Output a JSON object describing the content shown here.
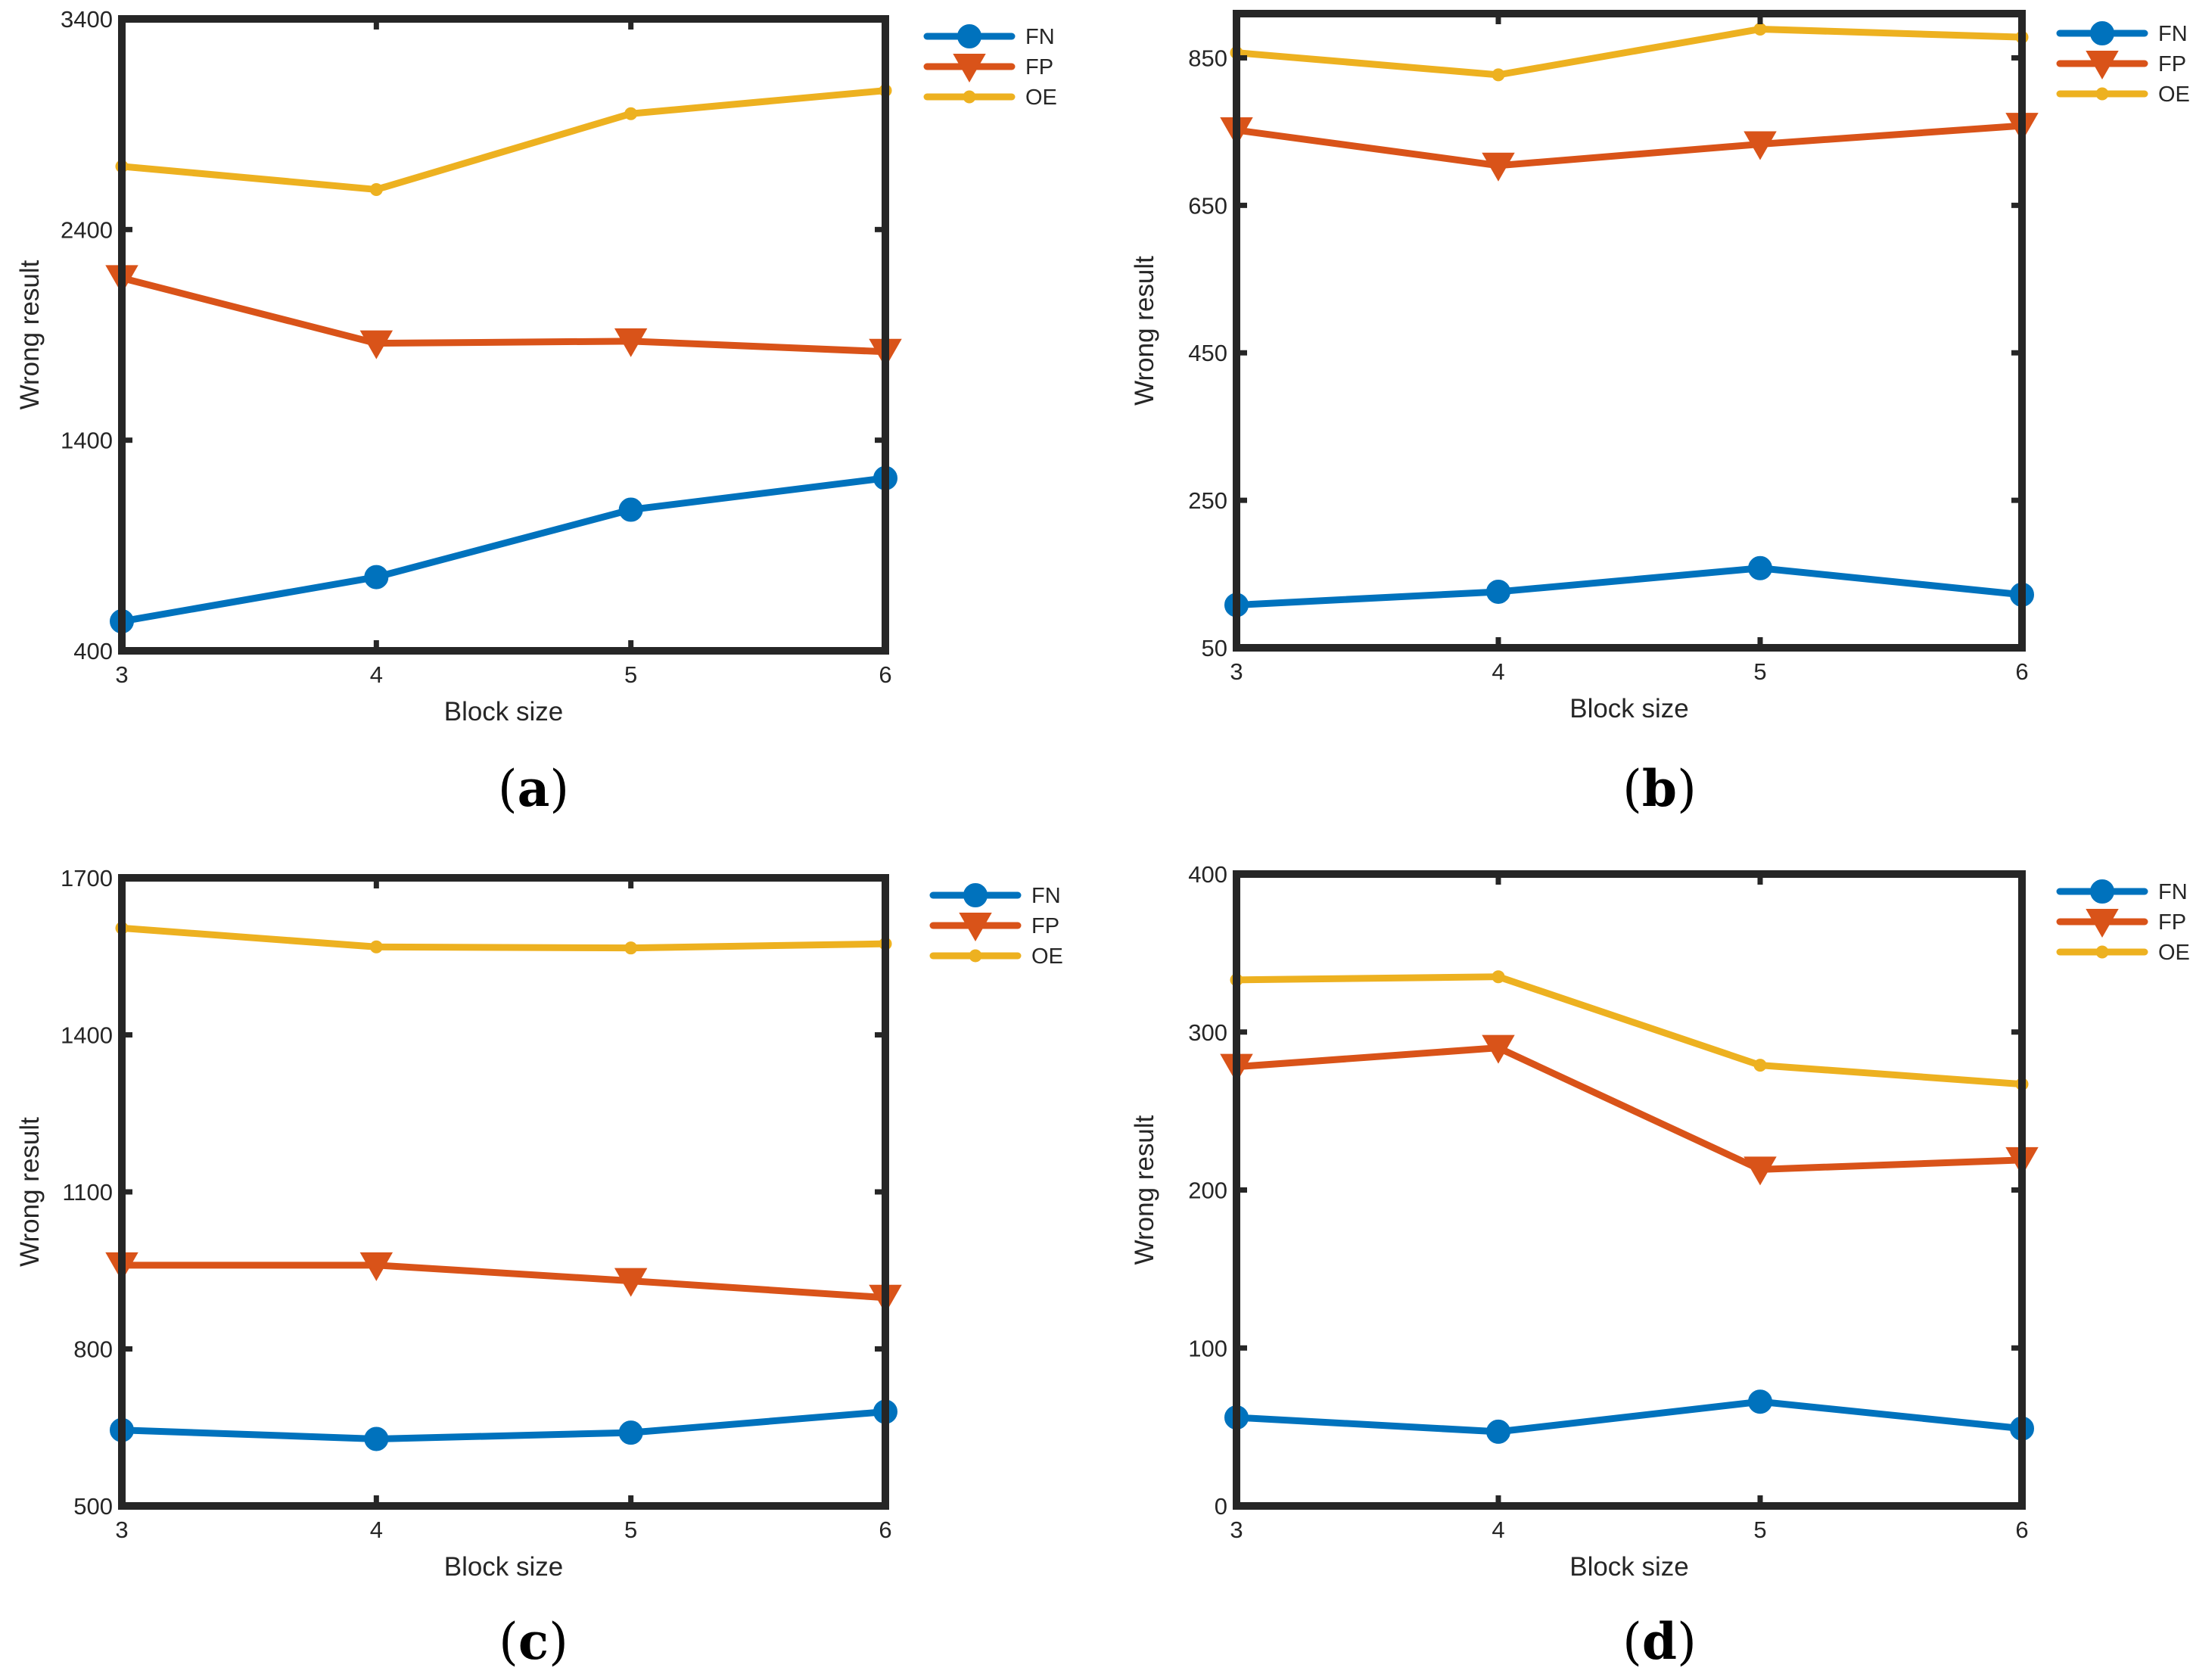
{
  "colors": {
    "FN": "#0072BD",
    "FP": "#D95319",
    "OE": "#EDB120",
    "frame": "#262626"
  },
  "chart_data": [
    {
      "type": "line",
      "panel": "a",
      "label_open": "(",
      "label_letter": "a",
      "label_close": ")",
      "xlabel": "Block size",
      "ylabel": "Wrong result",
      "categories": [
        "3",
        "4",
        "5",
        "6"
      ],
      "x": [
        3,
        4,
        5,
        6
      ],
      "xlim": [
        3,
        6
      ],
      "ylim": [
        400,
        3400
      ],
      "yticks": [
        400,
        1400,
        2400,
        3400
      ],
      "legend_location": "outside-top-right",
      "series": [
        {
          "name": "FN",
          "marker": "circle",
          "values": [
            540,
            750,
            1070,
            1220
          ]
        },
        {
          "name": "FP",
          "marker": "triangle-down",
          "values": [
            2170,
            1860,
            1870,
            1820
          ]
        },
        {
          "name": "OE",
          "marker": "dot",
          "values": [
            2700,
            2590,
            2950,
            3060
          ]
        }
      ]
    },
    {
      "type": "line",
      "panel": "b",
      "label_open": "(",
      "label_letter": "b",
      "label_close": ")",
      "xlabel": "Block size",
      "ylabel": "Wrong result",
      "categories": [
        "3",
        "4",
        "5",
        "6"
      ],
      "x": [
        3,
        4,
        5,
        6
      ],
      "xlim": [
        3,
        6
      ],
      "ylim": [
        50,
        910
      ],
      "yticks": [
        50,
        250,
        450,
        650,
        850
      ],
      "legend_location": "outside-top-right",
      "series": [
        {
          "name": "FN",
          "marker": "circle",
          "values": [
            108,
            126,
            158,
            122
          ]
        },
        {
          "name": "FP",
          "marker": "triangle-down",
          "values": [
            752,
            704,
            733,
            758
          ]
        },
        {
          "name": "OE",
          "marker": "dot",
          "values": [
            857,
            827,
            889,
            878
          ]
        }
      ]
    },
    {
      "type": "line",
      "panel": "c",
      "label_open": "(",
      "label_letter": "c",
      "label_close": ")",
      "xlabel": "Block size",
      "ylabel": "Wrong result",
      "categories": [
        "3",
        "4",
        "5",
        "6"
      ],
      "x": [
        3,
        4,
        5,
        6
      ],
      "xlim": [
        3,
        6
      ],
      "ylim": [
        500,
        1700
      ],
      "yticks": [
        500,
        800,
        1100,
        1400,
        1700
      ],
      "legend_location": "outside-top-right",
      "series": [
        {
          "name": "FN",
          "marker": "circle",
          "values": [
            645,
            628,
            640,
            680
          ]
        },
        {
          "name": "FP",
          "marker": "triangle-down",
          "values": [
            960,
            960,
            930,
            898
          ]
        },
        {
          "name": "OE",
          "marker": "dot",
          "values": [
            1604,
            1568,
            1566,
            1574
          ]
        }
      ]
    },
    {
      "type": "line",
      "panel": "d",
      "label_open": "(",
      "label_letter": "d",
      "label_close": ")",
      "xlabel": "Block size",
      "ylabel": "Wrong result",
      "categories": [
        "3",
        "4",
        "5",
        "6"
      ],
      "x": [
        3,
        4,
        5,
        6
      ],
      "xlim": [
        3,
        6
      ],
      "ylim": [
        0,
        400
      ],
      "yticks": [
        0,
        100,
        200,
        300,
        400
      ],
      "legend_location": "outside-top-right",
      "series": [
        {
          "name": "FN",
          "marker": "circle",
          "values": [
            56,
            47,
            66,
            49
          ]
        },
        {
          "name": "FP",
          "marker": "triangle-down",
          "values": [
            278,
            290,
            213,
            219
          ]
        },
        {
          "name": "OE",
          "marker": "dot",
          "values": [
            333,
            335,
            279,
            267
          ]
        }
      ]
    }
  ]
}
